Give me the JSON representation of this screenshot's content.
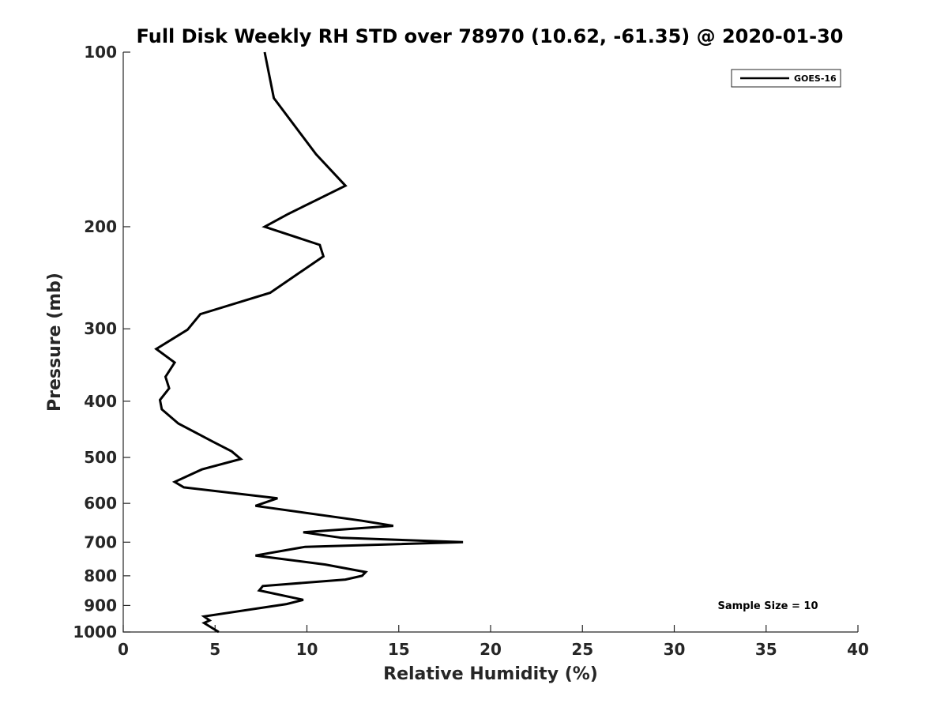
{
  "chart_data": {
    "type": "line",
    "title": "Full Disk Weekly RH STD over 78970 (10.62, -61.35) @ 2020-01-30",
    "xlabel": "Relative Humidity (%)",
    "ylabel": "Pressure (mb)",
    "xlim": [
      0,
      40
    ],
    "ylim": [
      1000,
      100
    ],
    "yscale": "log",
    "grid": false,
    "legend_position": "top-right",
    "x_ticks": [
      0,
      5,
      10,
      15,
      20,
      25,
      30,
      35,
      40
    ],
    "x_tick_labels": [
      "0",
      "5",
      "10",
      "15",
      "20",
      "25",
      "30",
      "35",
      "40"
    ],
    "y_ticks": [
      100,
      200,
      300,
      400,
      500,
      600,
      700,
      800,
      900,
      1000
    ],
    "y_tick_labels": [
      "100",
      "200",
      "300",
      "400",
      "500",
      "600",
      "700",
      "800",
      "900",
      "1000"
    ],
    "series": [
      {
        "name": "GOES-16",
        "color": "#000000",
        "x": [
          7.7,
          8.2,
          10.5,
          12.1,
          9.0,
          7.7,
          10.7,
          10.9,
          8.0,
          4.2,
          3.5,
          1.8,
          2.8,
          2.3,
          2.5,
          2.0,
          2.1,
          3.0,
          4.9,
          5.9,
          6.4,
          4.3,
          2.8,
          3.3,
          8.4,
          7.2,
          13.0,
          14.7,
          9.8,
          11.9,
          18.5,
          9.9,
          7.2,
          11.0,
          13.2,
          13.0,
          12.1,
          7.6,
          7.4,
          9.8,
          8.9,
          4.4,
          4.7,
          4.4,
          5.2
        ],
        "y": [
          100,
          120,
          150,
          170,
          190,
          200,
          215,
          225,
          260,
          283,
          301,
          325,
          343,
          363,
          380,
          398,
          413,
          437,
          470,
          488,
          503,
          524,
          551,
          563,
          588,
          606,
          643,
          656,
          673,
          688,
          700,
          713,
          738,
          765,
          788,
          800,
          812,
          833,
          848,
          880,
          895,
          940,
          955,
          965,
          1000
        ]
      }
    ],
    "annotation": "Sample Size = 10"
  }
}
